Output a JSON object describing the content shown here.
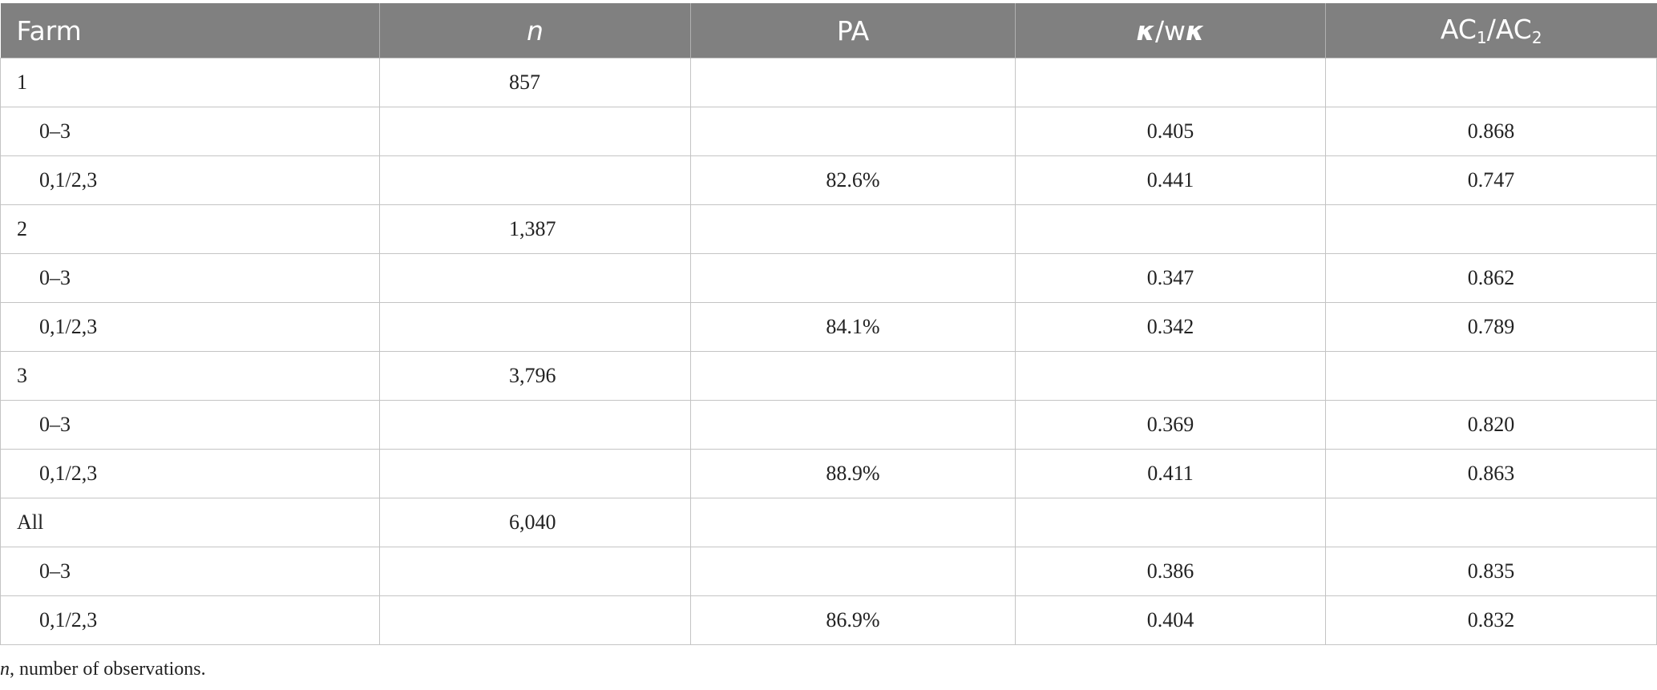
{
  "table": {
    "headers": {
      "farm": "Farm",
      "n": "n",
      "pa": "PA",
      "kappa_a": "κ",
      "kappa_sep": "/w",
      "kappa_b": "κ",
      "ac_base1": "AC",
      "ac_sub1": "1",
      "ac_sep": "/AC",
      "ac_sub2": "2"
    },
    "rows": [
      {
        "farm": "1",
        "n": "857",
        "pa": "",
        "kappa": "",
        "ac": ""
      },
      {
        "farm": "0–3",
        "n": "",
        "pa": "",
        "kappa": "0.405",
        "ac": "0.868"
      },
      {
        "farm": "0,1/2,3",
        "n": "",
        "pa": "82.6%",
        "kappa": "0.441",
        "ac": "0.747"
      },
      {
        "farm": "2",
        "n": "1,387",
        "pa": "",
        "kappa": "",
        "ac": ""
      },
      {
        "farm": "0–3",
        "n": "",
        "pa": "",
        "kappa": "0.347",
        "ac": "0.862"
      },
      {
        "farm": "0,1/2,3",
        "n": "",
        "pa": "84.1%",
        "kappa": "0.342",
        "ac": "0.789"
      },
      {
        "farm": "3",
        "n": "3,796",
        "pa": "",
        "kappa": "",
        "ac": ""
      },
      {
        "farm": "0–3",
        "n": "",
        "pa": "",
        "kappa": "0.369",
        "ac": "0.820"
      },
      {
        "farm": "0,1/2,3",
        "n": "",
        "pa": "88.9%",
        "kappa": "0.411",
        "ac": "0.863"
      },
      {
        "farm": "All",
        "n": "6,040",
        "pa": "",
        "kappa": "",
        "ac": ""
      },
      {
        "farm": "0–3",
        "n": "",
        "pa": "",
        "kappa": "0.386",
        "ac": "0.835"
      },
      {
        "farm": "0,1/2,3",
        "n": "",
        "pa": "86.9%",
        "kappa": "0.404",
        "ac": "0.832"
      }
    ]
  },
  "footnote": {
    "symbol": "n",
    "text": ", number of observations."
  }
}
